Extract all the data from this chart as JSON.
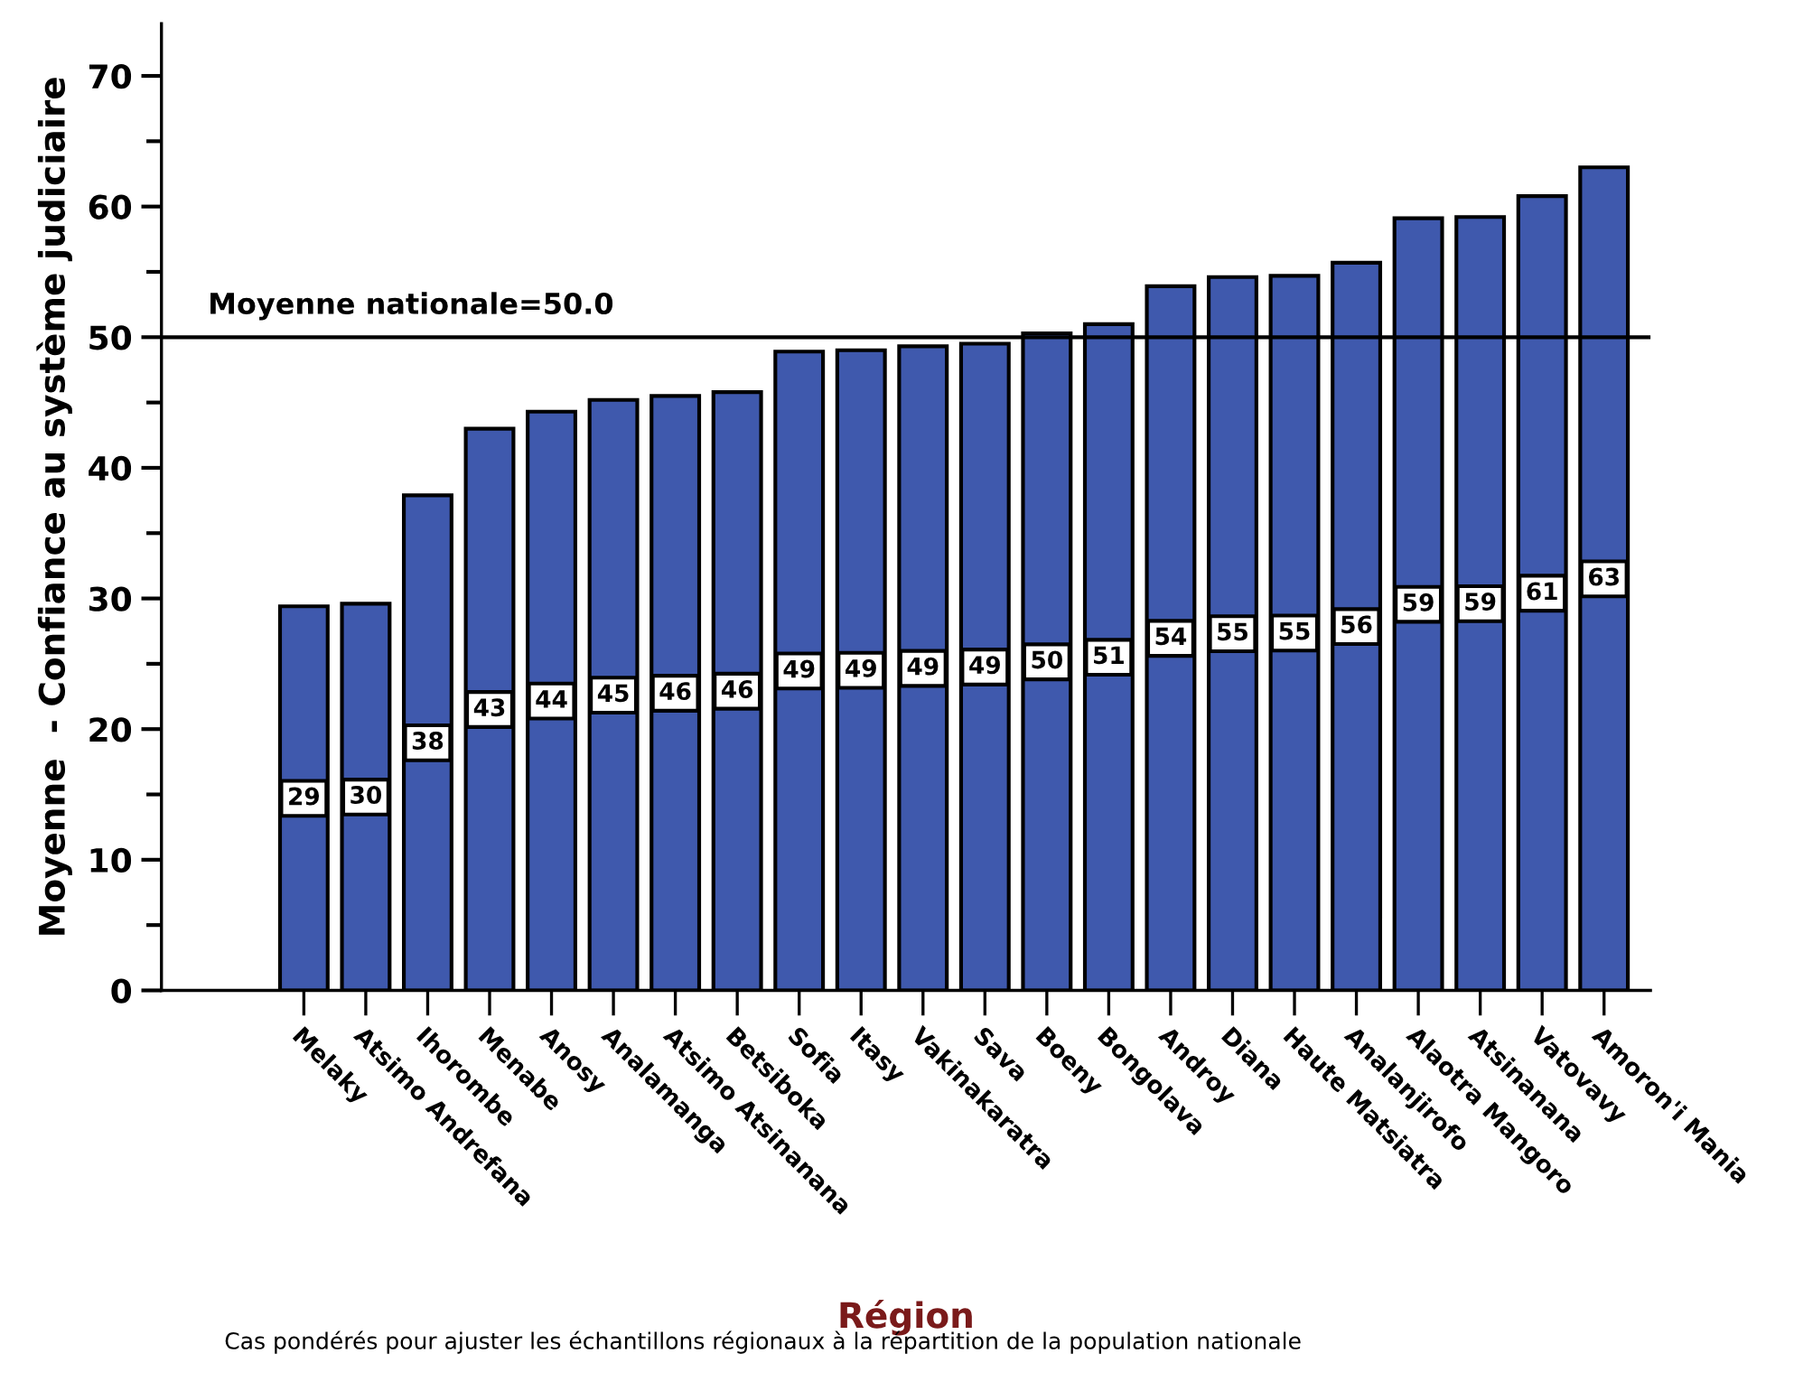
{
  "chart_data": {
    "type": "bar",
    "xlabel": "Région",
    "ylabel": "Moyenne  - Confiance au système judiciaire",
    "categories": [
      "Melaky",
      "Atsimo Andrefana",
      "Ihorombe",
      "Menabe",
      "Anosy",
      "Analamanga",
      "Atsimo Atsinanana",
      "Betsiboka",
      "Sofia",
      "Itasy",
      "Vakinakaratra",
      "Sava",
      "Boeny",
      "Bongolava",
      "Androy",
      "Diana",
      "Haute Matsiatra",
      "Analanjirofo",
      "Alaotra Mangoro",
      "Atsinanana",
      "Vatovavy",
      "Amoron'i Mania"
    ],
    "values": [
      29.4,
      29.6,
      37.9,
      43.0,
      44.3,
      45.2,
      45.5,
      45.8,
      48.9,
      49.0,
      49.3,
      49.5,
      50.3,
      51.0,
      53.9,
      54.6,
      54.7,
      55.7,
      59.1,
      59.2,
      60.8,
      63.0
    ],
    "value_labels": [
      "29",
      "30",
      "38",
      "43",
      "44",
      "45",
      "46",
      "46",
      "49",
      "49",
      "49",
      "49",
      "50",
      "51",
      "54",
      "55",
      "55",
      "56",
      "59",
      "59",
      "61",
      "63"
    ],
    "color": "#3f59ad",
    "ylim": [
      0,
      74
    ],
    "yticks": [
      0,
      10,
      20,
      30,
      40,
      50,
      60,
      70
    ],
    "ref_lines": [
      {
        "axis": "y",
        "value": 50.0,
        "label": "Moyenne nationale=50.0",
        "color": "#000000"
      }
    ],
    "annotations": [
      "Cas pondérés pour ajuster les échantillons régionaux à la répartition de la population nationale"
    ],
    "grid": false,
    "legend": false
  }
}
